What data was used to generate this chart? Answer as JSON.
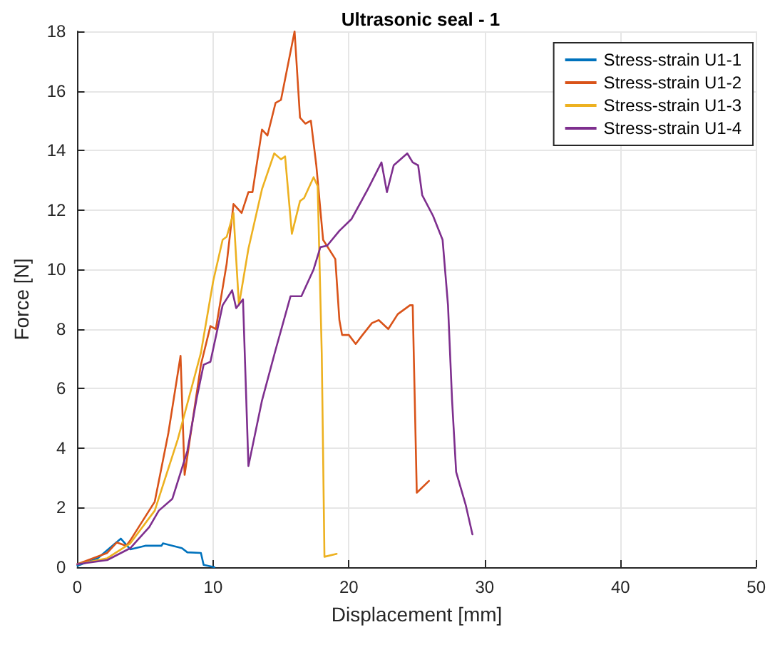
{
  "chart_data": {
    "type": "line",
    "title": "Ultrasonic seal - 1",
    "xlabel": "Displacement [mm]",
    "ylabel": "Force [N]",
    "xlim": [
      0,
      50
    ],
    "xticks": [
      0,
      10,
      20,
      30,
      40,
      50
    ],
    "ylim": [
      0,
      18
    ],
    "yticks": [
      0,
      2,
      4,
      6,
      8,
      10,
      12,
      14,
      16,
      18
    ],
    "grid": true,
    "legend": "top right",
    "marker": "none",
    "line_style": "solid",
    "series": [
      {
        "name": "Stress-strain U1-1",
        "color": "#0072bd",
        "x": [
          0,
          1.5,
          3.2,
          3.9,
          5.0,
          6.2,
          6.3,
          7.7,
          8.1,
          9.1,
          9.3,
          10.1
        ],
        "values": [
          0.05,
          0.3,
          0.96,
          0.6,
          0.72,
          0.72,
          0.8,
          0.64,
          0.5,
          0.48,
          0.08,
          0
        ]
      },
      {
        "name": "Stress-strain U1-2",
        "color": "#d95319",
        "x": [
          0,
          2.2,
          2.9,
          3.6,
          3.9,
          5.7,
          6.7,
          7.6,
          7.9,
          9.1,
          9.8,
          10.2,
          11.0,
          11.5,
          12.1,
          12.6,
          12.9,
          13.6,
          14.0,
          14.6,
          15.0,
          16.0,
          16.4,
          16.8,
          17.2,
          17.6,
          18.1,
          19.0,
          19.3,
          19.5,
          20.0,
          20.5,
          21.0,
          21.7,
          22.2,
          22.9,
          23.6,
          24.5,
          24.7,
          25.0,
          25.9
        ],
        "values": [
          0.1,
          0.48,
          0.83,
          0.72,
          0.9,
          2.2,
          4.5,
          7.1,
          3.1,
          6.8,
          8.1,
          8.0,
          10.2,
          12.2,
          11.9,
          12.6,
          12.6,
          14.7,
          14.5,
          15.6,
          15.7,
          18.0,
          15.1,
          14.9,
          15.0,
          13.5,
          11.0,
          10.35,
          8.3,
          7.8,
          7.8,
          7.5,
          7.8,
          8.2,
          8.3,
          8.0,
          8.5,
          8.8,
          8.8,
          2.5,
          2.9
        ]
      },
      {
        "name": "Stress-strain U1-3",
        "color": "#edb120",
        "x": [
          0,
          2.2,
          3.9,
          5.7,
          7.4,
          9.1,
          10.0,
          10.7,
          11.0,
          11.5,
          11.9,
          12.6,
          13.6,
          14.5,
          15.0,
          15.3,
          15.8,
          16.4,
          16.7,
          17.4,
          17.7,
          18.0,
          18.2,
          19.1
        ],
        "values": [
          0.1,
          0.3,
          0.8,
          1.9,
          4.3,
          7.2,
          9.6,
          11.0,
          11.1,
          11.9,
          8.8,
          10.7,
          12.7,
          13.9,
          13.7,
          13.8,
          11.2,
          12.3,
          12.4,
          13.1,
          12.8,
          7.2,
          0.35,
          0.45
        ]
      },
      {
        "name": "Stress-strain U1-4",
        "color": "#7e2f8e",
        "x": [
          0,
          2.2,
          3.9,
          5.3,
          6.0,
          7.0,
          8.1,
          8.8,
          9.3,
          9.8,
          10.7,
          11.4,
          11.7,
          12.2,
          12.6,
          13.6,
          14.6,
          15.7,
          16.5,
          17.4,
          17.9,
          18.4,
          19.3,
          20.2,
          21.4,
          22.4,
          22.8,
          23.3,
          24.3,
          24.7,
          25.1,
          25.4,
          26.2,
          26.9,
          27.3,
          27.6,
          27.9,
          28.6,
          29.1
        ],
        "values": [
          0.1,
          0.24,
          0.64,
          1.35,
          1.9,
          2.3,
          3.9,
          5.7,
          6.8,
          6.9,
          8.8,
          9.3,
          8.7,
          9.0,
          3.4,
          5.6,
          7.3,
          9.1,
          9.1,
          10.0,
          10.75,
          10.8,
          11.3,
          11.7,
          12.7,
          13.6,
          12.6,
          13.5,
          13.9,
          13.6,
          13.5,
          12.5,
          11.8,
          11.0,
          8.8,
          5.6,
          3.2,
          2.1,
          1.1
        ]
      }
    ]
  }
}
